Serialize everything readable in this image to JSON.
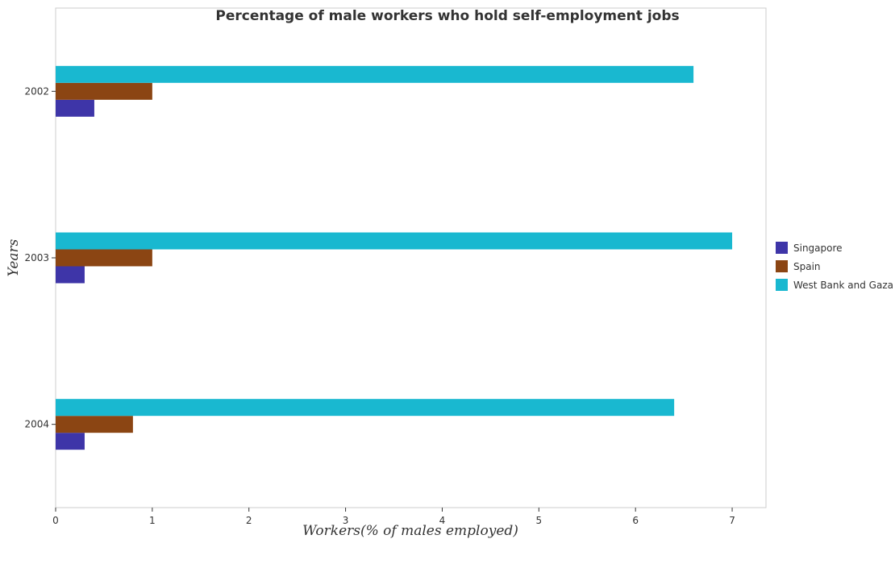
{
  "chart_data": {
    "type": "bar",
    "orientation": "horizontal",
    "title": "Percentage of male workers who hold self-employment jobs",
    "xlabel": "Workers(% of males employed)",
    "ylabel": "Years",
    "categories": [
      "2002",
      "2003",
      "2004"
    ],
    "xlim": [
      0,
      7.35
    ],
    "xticks": [
      0,
      1,
      2,
      3,
      4,
      5,
      6,
      7
    ],
    "grid": false,
    "legend_position": "right",
    "series": [
      {
        "name": "Singapore",
        "color": "#3e35a8",
        "values": [
          0.4,
          0.3,
          0.3
        ]
      },
      {
        "name": "Spain",
        "color": "#8b4513",
        "values": [
          1.0,
          1.0,
          0.8
        ]
      },
      {
        "name": "West Bank and Gaza",
        "color": "#19b8d0",
        "values": [
          6.6,
          7.0,
          6.4
        ]
      }
    ]
  }
}
